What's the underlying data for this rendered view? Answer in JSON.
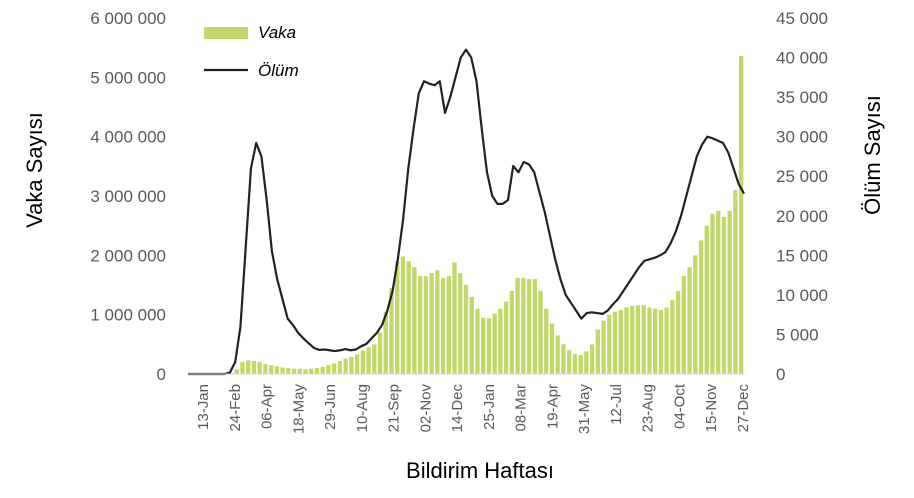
{
  "chart_data": {
    "type": "bar+line",
    "xlabel": "Bildirim Haftası",
    "ylabel_left": "Vaka Sayısı",
    "ylabel_right": "Ölüm Sayısı",
    "ylim_left": [
      0,
      6000000
    ],
    "ylim_right": [
      0,
      45000
    ],
    "yticks_left": [
      "0",
      "1 000 000",
      "2 000 000",
      "3 000 000",
      "4 000 000",
      "5 000 000",
      "6 000 000"
    ],
    "yticks_right": [
      "0",
      "5 000",
      "10 000",
      "15 000",
      "20 000",
      "25 000",
      "30 000",
      "35 000",
      "40 000",
      "45 000"
    ],
    "xtick_labels": [
      "13-Jan",
      "24-Feb",
      "06-Apr",
      "18-May",
      "29-Jun",
      "10-Aug",
      "21-Sep",
      "02-Nov",
      "14-Dec",
      "25-Jan",
      "08-Mar",
      "19-Apr",
      "31-May",
      "12-Jul",
      "23-Aug",
      "04-Oct",
      "15-Nov",
      "27-Dec"
    ],
    "legend": {
      "placement": "top-left"
    },
    "colors": {
      "bar": "#c3d86b",
      "line": "#222222"
    },
    "series": [
      {
        "name": "Vaka",
        "kind": "bar",
        "axis": "left",
        "values": [
          0,
          0,
          0,
          0,
          0,
          0,
          0,
          20000,
          80000,
          200000,
          230000,
          220000,
          200000,
          170000,
          150000,
          130000,
          110000,
          100000,
          90000,
          90000,
          80000,
          90000,
          100000,
          120000,
          150000,
          180000,
          220000,
          260000,
          290000,
          330000,
          400000,
          450000,
          500000,
          700000,
          1050000,
          1450000,
          1900000,
          1980000,
          1900000,
          1800000,
          1650000,
          1650000,
          1700000,
          1750000,
          1620000,
          1650000,
          1880000,
          1700000,
          1500000,
          1300000,
          1100000,
          950000,
          940000,
          1020000,
          1100000,
          1220000,
          1400000,
          1620000,
          1620000,
          1600000,
          1600000,
          1400000,
          1100000,
          850000,
          650000,
          500000,
          400000,
          340000,
          320000,
          380000,
          500000,
          750000,
          900000,
          1000000,
          1050000,
          1080000,
          1120000,
          1150000,
          1160000,
          1160000,
          1120000,
          1100000,
          1080000,
          1120000,
          1250000,
          1400000,
          1650000,
          1800000,
          2000000,
          2250000,
          2500000,
          2700000,
          2750000,
          2650000,
          2750000,
          3100000,
          5360000
        ]
      },
      {
        "name": "Ölüm",
        "kind": "line",
        "axis": "right",
        "values": [
          0,
          0,
          0,
          0,
          0,
          0,
          0,
          0,
          200,
          1500,
          6000,
          16000,
          26000,
          29200,
          27500,
          22000,
          15500,
          12000,
          9500,
          7000,
          6200,
          5200,
          4500,
          3900,
          3300,
          3050,
          3100,
          3000,
          2900,
          3000,
          3150,
          3000,
          3100,
          3500,
          3800,
          4500,
          5200,
          6200,
          8000,
          10500,
          14500,
          19500,
          26000,
          31000,
          35500,
          37000,
          36700,
          36500,
          37000,
          33000,
          35000,
          37500,
          40000,
          41000,
          40000,
          37000,
          31000,
          25500,
          22500,
          21500,
          21500,
          22000,
          26300,
          25500,
          26800,
          26500,
          25500,
          23000,
          20500,
          17500,
          14500,
          12000,
          10000,
          9000,
          8000,
          7000,
          7700,
          7800,
          7700,
          7600,
          8000,
          8800,
          9500,
          10500,
          11500,
          12500,
          13500,
          14300,
          14500,
          14700,
          15000,
          15400,
          16500,
          18000,
          20000,
          22500,
          25000,
          27500,
          29000,
          30000,
          29800,
          29500,
          29200,
          28000,
          26000,
          24000,
          22800
        ]
      }
    ]
  }
}
